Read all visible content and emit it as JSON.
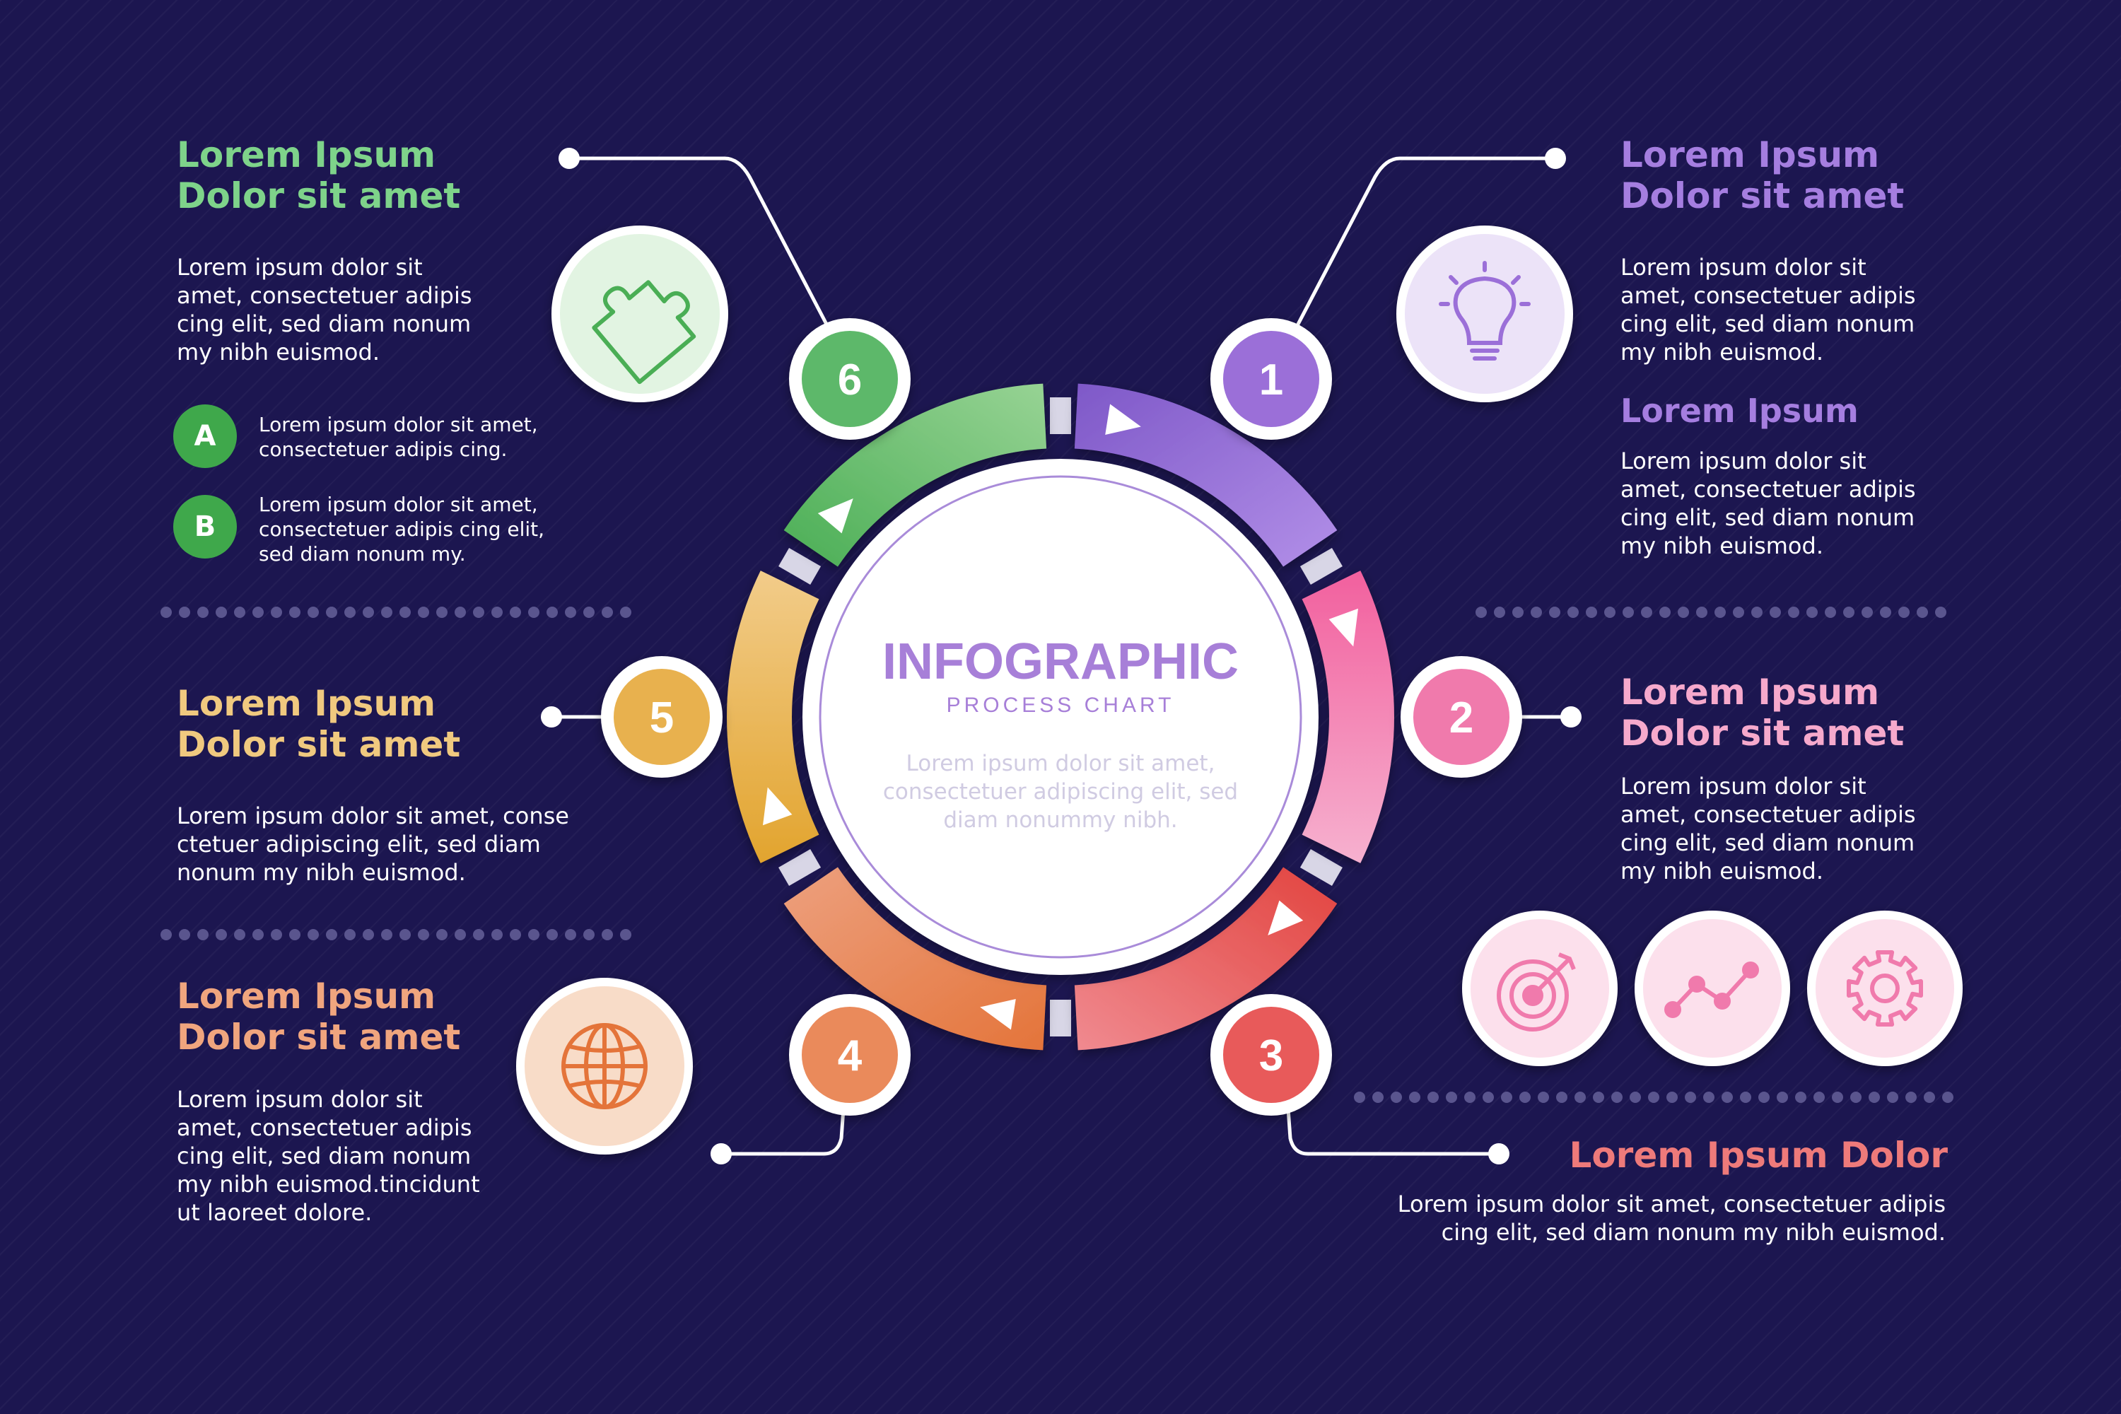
{
  "colors": {
    "background": "#1c1650",
    "step1": "#9b6fd8",
    "step2": "#f07aac",
    "step3": "#e85a5a",
    "step4": "#ea8a5b",
    "step5": "#e8b14e",
    "step6": "#5db86a"
  },
  "center": {
    "title": "INFOGRAPHIC",
    "subtitle": "PROCESS CHART",
    "text": "Lorem ipsum dolor sit amet,\nconsectetuer adipiscing elit, sed\ndiam nonummy nibh."
  },
  "steps": [
    {
      "number": "1",
      "icon": "lightbulb-icon"
    },
    {
      "number": "2"
    },
    {
      "number": "3"
    },
    {
      "number": "4",
      "icon": "globe-icon"
    },
    {
      "number": "5"
    },
    {
      "number": "6",
      "icon": "puzzle-icon"
    }
  ],
  "blocks": {
    "step6": {
      "title": "Lorem Ipsum\nDolor sit amet",
      "text": "Lorem ipsum dolor sit\namet, consectetuer adipis\ncing elit, sed diam nonum\nmy nibh euismod.",
      "items": [
        {
          "badge": "A",
          "text": "Lorem ipsum dolor sit amet,\nconsectetuer adipis cing."
        },
        {
          "badge": "B",
          "text": "Lorem ipsum dolor sit amet,\nconsectetuer adipis cing elit,\nsed diam nonum my."
        }
      ]
    },
    "step1": {
      "title": "Lorem Ipsum\nDolor sit amet",
      "text": "Lorem ipsum dolor sit\namet, consectetuer adipis\ncing elit, sed diam nonum\nmy nibh euismod.",
      "subtitle": "Lorem Ipsum",
      "subtext": "Lorem ipsum dolor sit\namet, consectetuer adipis\ncing elit, sed diam nonum\nmy nibh euismod."
    },
    "step5": {
      "title": "Lorem Ipsum\nDolor sit amet",
      "text": "Lorem ipsum dolor sit amet, conse\nctetuer adipiscing elit, sed diam\nnonum my nibh euismod."
    },
    "step2": {
      "title": "Lorem Ipsum\nDolor sit amet",
      "text": "Lorem ipsum dolor sit\namet, consectetuer adipis\ncing elit, sed diam nonum\nmy nibh euismod."
    },
    "step4": {
      "title": "Lorem Ipsum\nDolor sit amet",
      "text": "Lorem ipsum dolor sit\namet, consectetuer adipis\ncing elit, sed diam nonum\nmy nibh euismod.tincidunt\nut laoreet dolore."
    },
    "step3": {
      "title": "Lorem Ipsum Dolor",
      "text": "Lorem ipsum dolor sit amet, consectetuer adipis\ncing elit, sed diam nonum my nibh euismod.",
      "icons": [
        "target-icon",
        "trend-chart-icon",
        "gear-icon"
      ]
    }
  }
}
